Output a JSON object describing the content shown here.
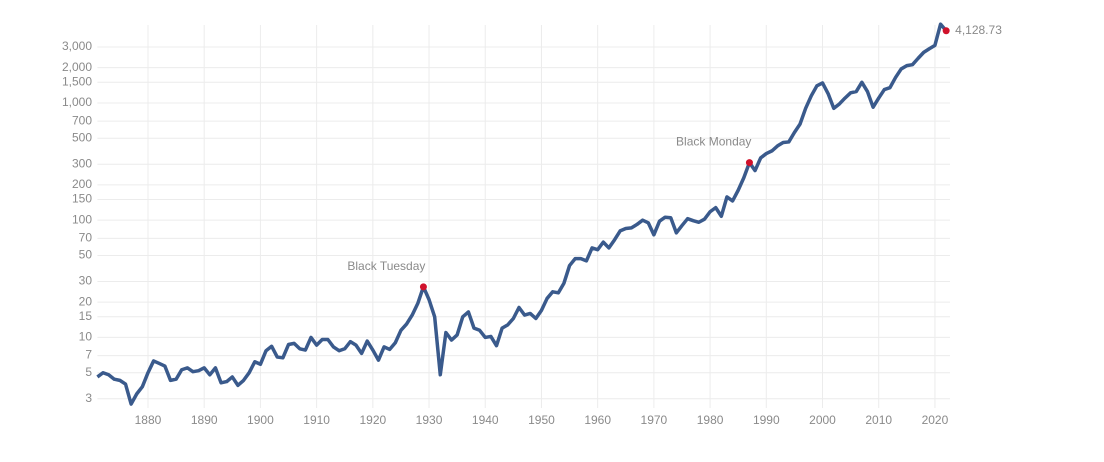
{
  "chart_data": {
    "type": "line",
    "log_scale": true,
    "grid": true,
    "x": [
      1871,
      1872,
      1873,
      1874,
      1875,
      1876,
      1877,
      1878,
      1879,
      1880,
      1881,
      1882,
      1883,
      1884,
      1885,
      1886,
      1887,
      1888,
      1889,
      1890,
      1891,
      1892,
      1893,
      1894,
      1895,
      1896,
      1897,
      1898,
      1899,
      1900,
      1901,
      1902,
      1903,
      1904,
      1905,
      1906,
      1907,
      1908,
      1909,
      1910,
      1911,
      1912,
      1913,
      1914,
      1915,
      1916,
      1917,
      1918,
      1919,
      1920,
      1921,
      1922,
      1923,
      1924,
      1925,
      1926,
      1927,
      1928,
      1929,
      1930,
      1931,
      1932,
      1933,
      1934,
      1935,
      1936,
      1937,
      1938,
      1939,
      1940,
      1941,
      1942,
      1943,
      1944,
      1945,
      1946,
      1947,
      1948,
      1949,
      1950,
      1951,
      1952,
      1953,
      1954,
      1955,
      1956,
      1957,
      1958,
      1959,
      1960,
      1961,
      1962,
      1963,
      1964,
      1965,
      1966,
      1967,
      1968,
      1969,
      1970,
      1971,
      1972,
      1973,
      1974,
      1975,
      1976,
      1977,
      1978,
      1979,
      1980,
      1981,
      1982,
      1983,
      1984,
      1985,
      1986,
      1987,
      1988,
      1989,
      1990,
      1991,
      1992,
      1993,
      1994,
      1995,
      1996,
      1997,
      1998,
      1999,
      2000,
      2001,
      2002,
      2003,
      2004,
      2005,
      2006,
      2007,
      2008,
      2009,
      2010,
      2011,
      2012,
      2013,
      2014,
      2015,
      2016,
      2017,
      2018,
      2019,
      2020,
      2021,
      2022
    ],
    "series": [
      {
        "color": "#3a5a8c",
        "values": [
          4.6,
          5.0,
          4.8,
          4.4,
          4.3,
          4.0,
          2.7,
          3.3,
          3.8,
          5.0,
          6.3,
          6.0,
          5.7,
          4.3,
          4.4,
          5.3,
          5.5,
          5.1,
          5.2,
          5.5,
          4.8,
          5.5,
          4.1,
          4.2,
          4.6,
          3.9,
          4.3,
          5.0,
          6.2,
          5.9,
          7.7,
          8.4,
          6.8,
          6.7,
          8.7,
          8.9,
          8.0,
          7.8,
          10.0,
          8.6,
          9.6,
          9.6,
          8.3,
          7.7,
          8.0,
          9.2,
          8.6,
          7.3,
          9.3,
          7.8,
          6.4,
          8.3,
          7.9,
          9.0,
          11.5,
          13.0,
          15.5,
          19.5,
          27,
          21,
          15,
          4.8,
          11,
          9.5,
          10.5,
          15,
          16.5,
          12,
          11.5,
          10,
          10.2,
          8.5,
          12,
          12.8,
          14.5,
          18,
          15.5,
          16,
          14.5,
          17,
          21.5,
          24.5,
          24,
          29,
          41,
          47,
          47,
          45,
          58,
          56,
          65,
          58,
          68,
          81,
          85,
          86,
          92,
          100,
          95,
          75,
          98,
          106,
          105,
          78,
          90,
          103,
          99,
          96,
          102,
          118,
          128,
          108,
          158,
          146,
          180,
          230,
          310,
          265,
          340,
          370,
          390,
          430,
          460,
          465,
          560,
          660,
          900,
          1150,
          1400,
          1480,
          1200,
          900,
          980,
          1100,
          1220,
          1250,
          1500,
          1250,
          920,
          1100,
          1300,
          1350,
          1650,
          1950,
          2080,
          2120,
          2400,
          2700,
          2900,
          3100,
          4700,
          4128.73
        ]
      }
    ],
    "highlight_color": "#d0112b",
    "annotations": [
      {
        "x": 1929,
        "label": "Black Tuesday"
      },
      {
        "x": 1987,
        "label": "Black Monday"
      },
      {
        "x": 2022,
        "label": "4,128.73"
      }
    ],
    "xlim": [
      1871,
      2023
    ],
    "xticks": [
      1880,
      1890,
      1900,
      1910,
      1920,
      1930,
      1940,
      1950,
      1960,
      1970,
      1980,
      1990,
      2000,
      2010,
      2020
    ],
    "ylim": [
      2.5,
      5000
    ],
    "yticks": [
      3,
      5,
      7,
      10,
      15,
      20,
      30,
      50,
      70,
      100,
      150,
      200,
      300,
      500,
      700,
      {
        "value": 1000,
        "label": "1,000"
      },
      {
        "value": 1500,
        "label": "1,500"
      },
      {
        "value": 2000,
        "label": "2,000"
      },
      {
        "value": 3000,
        "label": "3,000"
      }
    ]
  }
}
